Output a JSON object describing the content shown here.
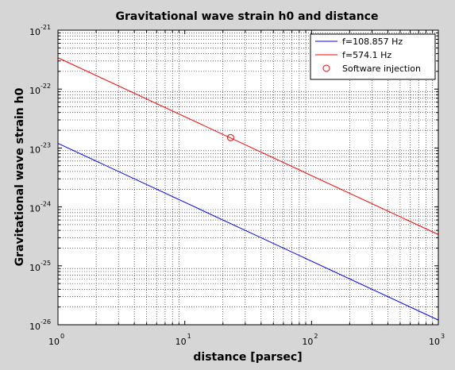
{
  "chart_data": {
    "type": "line",
    "title": "Gravitational wave strain h0 and distance",
    "xlabel": "distance [parsec]",
    "ylabel": "Gravitational wave strain h0",
    "xscale": "log",
    "yscale": "log",
    "xlim": [
      1,
      1000
    ],
    "ylim": [
      1e-26,
      1e-21
    ],
    "x_ticks": [
      {
        "value": 1,
        "base": "10",
        "exp": "0"
      },
      {
        "value": 10,
        "base": "10",
        "exp": "1"
      },
      {
        "value": 100,
        "base": "10",
        "exp": "2"
      },
      {
        "value": 1000,
        "base": "10",
        "exp": "3"
      }
    ],
    "y_ticks": [
      {
        "value": 1e-26,
        "base": "10",
        "exp": "-26"
      },
      {
        "value": 1e-25,
        "base": "10",
        "exp": "-25"
      },
      {
        "value": 1e-24,
        "base": "10",
        "exp": "-24"
      },
      {
        "value": 1e-23,
        "base": "10",
        "exp": "-23"
      },
      {
        "value": 1e-22,
        "base": "10",
        "exp": "-22"
      },
      {
        "value": 1e-21,
        "base": "10",
        "exp": "-21"
      }
    ],
    "grid": true,
    "legend_position": "top-right",
    "series": [
      {
        "name": "f=108.857 Hz",
        "color": "#0000ff",
        "style": "line",
        "x": [
          1,
          1000
        ],
        "y": [
          1.2e-23,
          1.2e-26
        ]
      },
      {
        "name": "f=574.1 Hz",
        "color": "#ff0000",
        "style": "line",
        "x": [
          1,
          1000
        ],
        "y": [
          3.4e-22,
          3.4e-25
        ]
      },
      {
        "name": "Software injection",
        "color": "#ff0000",
        "style": "marker-circle",
        "x": [
          23
        ],
        "y": [
          1.5e-23
        ]
      }
    ]
  }
}
